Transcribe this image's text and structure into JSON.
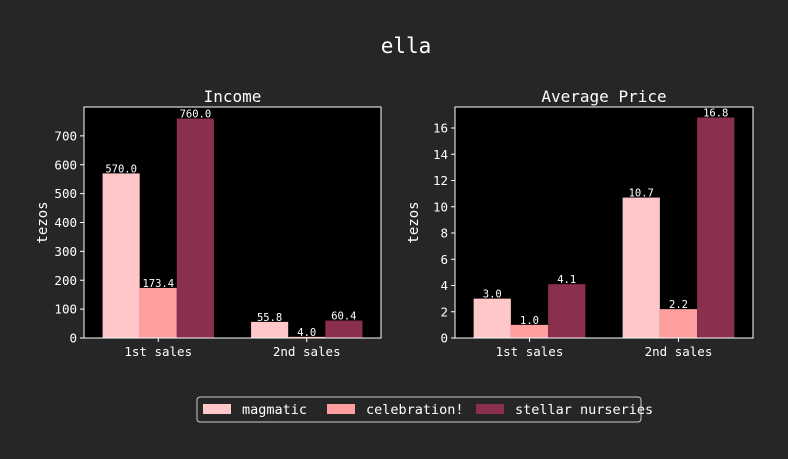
{
  "figure": {
    "title": "ella"
  },
  "chart_data": [
    {
      "type": "bar",
      "title": "Income",
      "xlabel": "",
      "ylabel": "tezos",
      "categories": [
        "1st sales",
        "2nd sales"
      ],
      "ylim": [
        0,
        800
      ],
      "yticks": [
        0,
        100,
        200,
        300,
        400,
        500,
        600,
        700
      ],
      "series": [
        {
          "name": "magmatic",
          "values": [
            570.0,
            55.8
          ],
          "labels": [
            "570.0",
            "55.8"
          ],
          "color": "#ffc7c7"
        },
        {
          "name": "celebration!",
          "values": [
            173.4,
            4.0
          ],
          "labels": [
            "173.4",
            "4.0"
          ],
          "color": "#ff9e9e"
        },
        {
          "name": "stellar nurseries",
          "values": [
            760.0,
            60.4
          ],
          "labels": [
            "760.0",
            "60.4"
          ],
          "color": "#8b2f4e"
        }
      ]
    },
    {
      "type": "bar",
      "title": "Average Price",
      "xlabel": "",
      "ylabel": "tezos",
      "categories": [
        "1st sales",
        "2nd sales"
      ],
      "ylim": [
        0,
        17.6
      ],
      "yticks": [
        0,
        2,
        4,
        6,
        8,
        10,
        12,
        14,
        16
      ],
      "series": [
        {
          "name": "magmatic",
          "values": [
            3.0,
            10.7
          ],
          "labels": [
            "3.0",
            "10.7"
          ],
          "color": "#ffc7c7"
        },
        {
          "name": "celebration!",
          "values": [
            1.0,
            2.2
          ],
          "labels": [
            "1.0",
            "2.2"
          ],
          "color": "#ff9e9e"
        },
        {
          "name": "stellar nurseries",
          "values": [
            4.1,
            16.8
          ],
          "labels": [
            "4.1",
            "16.8"
          ],
          "color": "#8b2f4e"
        }
      ]
    }
  ],
  "legend": {
    "placement": "bottom-center",
    "items": [
      {
        "label": "magmatic",
        "color": "#ffc7c7"
      },
      {
        "label": "celebration!",
        "color": "#ff9e9e"
      },
      {
        "label": "stellar nurseries",
        "color": "#8b2f4e"
      }
    ]
  },
  "style": {
    "figure_background": "#262626",
    "axes_background": "#000000",
    "text_color": "#ffffff",
    "spine_color": "#ffffff"
  }
}
